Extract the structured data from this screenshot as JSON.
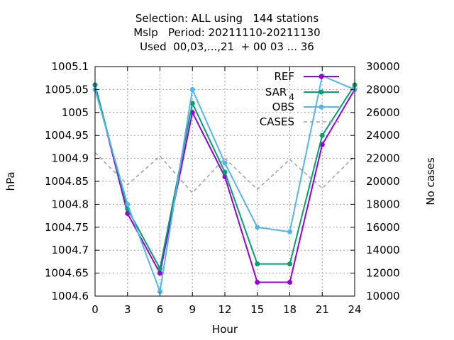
{
  "chart_data": {
    "type": "line",
    "title_lines": [
      "Selection: ALL using   144 stations",
      "Mslp   Period: 20211110-20211130",
      "Used  00,03,...,21  + 00 03 ... 36"
    ],
    "xlabel": "Hour",
    "ylabel": "hPa",
    "y2label": "No cases",
    "x": [
      0,
      3,
      6,
      9,
      12,
      15,
      18,
      21,
      24
    ],
    "xlim": [
      0,
      24
    ],
    "xticks": [
      "0",
      "3",
      "6",
      "9",
      "12",
      "15",
      "18",
      "21",
      "24"
    ],
    "ylim": [
      1004.6,
      1005.1
    ],
    "yticks": [
      "1004.6",
      "1004.65",
      "1004.7",
      "1004.75",
      "1004.8",
      "1004.85",
      "1004.9",
      "1004.95",
      "1005",
      "1005.05",
      "1005.1"
    ],
    "y2lim": [
      10000,
      30000
    ],
    "y2ticks": [
      "10000",
      "12000",
      "14000",
      "16000",
      "18000",
      "20000",
      "22000",
      "24000",
      "26000",
      "28000",
      "30000"
    ],
    "grid": true,
    "legend_position": "top-right",
    "series": [
      {
        "name": "REF",
        "color": "#9400d3",
        "axis": "y",
        "marker": "circle",
        "values": [
          1005.06,
          1004.78,
          1004.65,
          1005.0,
          1004.86,
          1004.63,
          1004.63,
          1004.93,
          1005.05
        ]
      },
      {
        "name": "SAR",
        "name_subscript": "4",
        "color": "#009e73",
        "axis": "y",
        "marker": "circle",
        "values": [
          1005.06,
          1004.79,
          1004.66,
          1005.02,
          1004.87,
          1004.67,
          1004.67,
          1004.95,
          1005.06
        ]
      },
      {
        "name": "OBS",
        "color": "#56b4e9",
        "axis": "y",
        "marker": "circle",
        "values": [
          1005.05,
          1004.8,
          1004.61,
          1005.05,
          1004.89,
          1004.75,
          1004.74,
          1005.08,
          1005.05
        ]
      },
      {
        "name": "CASES",
        "color": "#a0a0a0",
        "axis": "y2",
        "dashed": true,
        "values": [
          22500,
          19700,
          22200,
          19000,
          22000,
          19300,
          21900,
          19400,
          22200
        ]
      }
    ]
  }
}
